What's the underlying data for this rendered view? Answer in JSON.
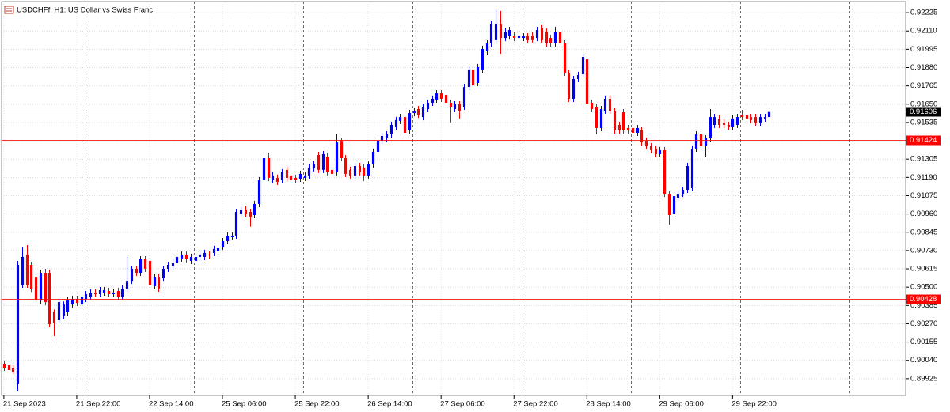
{
  "chart_data": {
    "type": "candlestick",
    "title": "USDCHFf, H1:  US Dollar vs Swiss Franc",
    "up_color": "#0000ff",
    "down_color": "#ff0000",
    "grid": true,
    "ylim": [
      0.8982,
      0.92295
    ],
    "yticks": [
      0.92225,
      {
        "value": 0.9211,
        "label": "0.92110"
      },
      0.91995,
      {
        "value": 0.9188,
        "label": "0.91880"
      },
      0.91765,
      {
        "value": 0.9165,
        "label": "0.91650"
      },
      0.91535,
      {
        "value": 0.9142,
        "label": "0.91420"
      },
      0.91305,
      {
        "value": 0.9119,
        "label": "0.91190"
      },
      0.91075,
      {
        "value": 0.9096,
        "label": "0.90960"
      },
      0.90845,
      {
        "value": 0.9073,
        "label": "0.90730"
      },
      0.90615,
      {
        "value": 0.905,
        "label": "0.90500"
      },
      0.90385,
      {
        "value": 0.9027,
        "label": "0.90270"
      },
      0.90155,
      {
        "value": 0.9004,
        "label": "0.90040"
      },
      0.89925
    ],
    "xlim": [
      -0.5,
      198
    ],
    "xticks": [
      {
        "value": 0,
        "label": "21 Sep 2023"
      },
      {
        "value": 16,
        "label": "21 Sep 22:00"
      },
      {
        "value": 32,
        "label": "22 Sep 14:00"
      },
      {
        "value": 48,
        "label": "25 Sep 06:00"
      },
      {
        "value": 64,
        "label": "25 Sep 22:00"
      },
      {
        "value": 80,
        "label": "26 Sep 14:00"
      },
      {
        "value": 96,
        "label": "27 Sep 06:00"
      },
      {
        "value": 112,
        "label": "27 Sep 22:00"
      },
      {
        "value": 128,
        "label": "28 Sep 14:00"
      },
      {
        "value": 144,
        "label": "29 Sep 06:00"
      },
      {
        "value": 160,
        "label": "29 Sep 22:00"
      }
    ],
    "day_starts": [
      18,
      42,
      66,
      90,
      114,
      138,
      162,
      186
    ],
    "price_lines": [
      {
        "value": 0.91606,
        "color": "#000000"
      },
      {
        "value": 0.91424,
        "color": "#ff0000"
      },
      {
        "value": 0.90428,
        "color": "#ff0000"
      }
    ],
    "ohlc": [
      [
        0.90019,
        0.90039,
        0.89974,
        0.89994
      ],
      [
        0.90009,
        0.90029,
        0.8996,
        0.89979
      ],
      [
        0.89994,
        0.9001,
        0.89955,
        0.89969
      ],
      [
        0.89895,
        0.90665,
        0.89845,
        0.9064
      ],
      [
        0.90516,
        0.90754,
        0.90496,
        0.9069
      ],
      [
        0.90705,
        0.90764,
        0.90496,
        0.90516
      ],
      [
        0.9064,
        0.9066,
        0.9047,
        0.90491
      ],
      [
        0.90565,
        0.9059,
        0.90396,
        0.90416
      ],
      [
        0.90416,
        0.9061,
        0.90396,
        0.9059
      ],
      [
        0.9059,
        0.90615,
        0.90386,
        0.90406
      ],
      [
        0.9059,
        0.9061,
        0.90247,
        0.90267
      ],
      [
        0.90342,
        0.9036,
        0.90193,
        0.90277
      ],
      [
        0.90292,
        0.90425,
        0.90272,
        0.90406
      ],
      [
        0.90317,
        0.9041,
        0.90297,
        0.90391
      ],
      [
        0.90342,
        0.90436,
        0.90322,
        0.90416
      ],
      [
        0.90391,
        0.90446,
        0.90371,
        0.90426
      ],
      [
        0.90426,
        0.90446,
        0.90381,
        0.90401
      ],
      [
        0.90391,
        0.90461,
        0.90371,
        0.90441
      ],
      [
        0.90426,
        0.90476,
        0.90406,
        0.90456
      ],
      [
        0.90441,
        0.90486,
        0.90421,
        0.90466
      ],
      [
        0.90466,
        0.90486,
        0.90436,
        0.90456
      ],
      [
        0.90456,
        0.90501,
        0.90436,
        0.90481
      ],
      [
        0.90466,
        0.90501,
        0.90446,
        0.90481
      ],
      [
        0.90476,
        0.90496,
        0.90436,
        0.90456
      ],
      [
        0.90456,
        0.90486,
        0.90436,
        0.90466
      ],
      [
        0.90476,
        0.90496,
        0.90421,
        0.90441
      ],
      [
        0.90441,
        0.90511,
        0.90421,
        0.90491
      ],
      [
        0.90491,
        0.9069,
        0.90471,
        0.9054
      ],
      [
        0.9054,
        0.90635,
        0.9052,
        0.90615
      ],
      [
        0.90615,
        0.90635,
        0.9057,
        0.9059
      ],
      [
        0.9059,
        0.90695,
        0.9057,
        0.90675
      ],
      [
        0.90675,
        0.90695,
        0.90595,
        0.90615
      ],
      [
        0.90665,
        0.90685,
        0.90496,
        0.90516
      ],
      [
        0.90506,
        0.90585,
        0.90486,
        0.90565
      ],
      [
        0.90565,
        0.90585,
        0.90471,
        0.90491
      ],
      [
        0.9056,
        0.90635,
        0.9054,
        0.90615
      ],
      [
        0.90615,
        0.9066,
        0.90595,
        0.9064
      ],
      [
        0.9063,
        0.90675,
        0.9061,
        0.90655
      ],
      [
        0.90655,
        0.9071,
        0.90635,
        0.9069
      ],
      [
        0.9068,
        0.90725,
        0.9066,
        0.90705
      ],
      [
        0.90705,
        0.90725,
        0.90655,
        0.90675
      ],
      [
        0.90665,
        0.9071,
        0.90645,
        0.9069
      ],
      [
        0.90665,
        0.90705,
        0.9065,
        0.9069
      ],
      [
        0.9069,
        0.90725,
        0.9067,
        0.90705
      ],
      [
        0.9069,
        0.90735,
        0.9067,
        0.90715
      ],
      [
        0.90705,
        0.90725,
        0.9068,
        0.907
      ],
      [
        0.90715,
        0.9076,
        0.90695,
        0.9074
      ],
      [
        0.90725,
        0.9077,
        0.90705,
        0.90749
      ],
      [
        0.90754,
        0.90809,
        0.90734,
        0.90789
      ],
      [
        0.90789,
        0.90844,
        0.90769,
        0.90824
      ],
      [
        0.90814,
        0.90844,
        0.90794,
        0.90824
      ],
      [
        0.90824,
        0.90993,
        0.90804,
        0.90973
      ],
      [
        0.90963,
        0.91008,
        0.90943,
        0.90988
      ],
      [
        0.90988,
        0.91008,
        0.90943,
        0.90963
      ],
      [
        0.90973,
        0.90993,
        0.9088,
        0.90938
      ],
      [
        0.90953,
        0.91043,
        0.90933,
        0.91023
      ],
      [
        0.91023,
        0.91192,
        0.91003,
        0.91172
      ],
      [
        0.91172,
        0.91331,
        0.91152,
        0.91311
      ],
      [
        0.91311,
        0.91346,
        0.91167,
        0.91187
      ],
      [
        0.91172,
        0.91222,
        0.91152,
        0.91202
      ],
      [
        0.91187,
        0.91207,
        0.91142,
        0.91162
      ],
      [
        0.91172,
        0.91242,
        0.91152,
        0.91222
      ],
      [
        0.91237,
        0.91257,
        0.91167,
        0.91187
      ],
      [
        0.91202,
        0.91222,
        0.91152,
        0.91172
      ],
      [
        0.91187,
        0.91207,
        0.91152,
        0.91172
      ],
      [
        0.91182,
        0.91232,
        0.91162,
        0.91212
      ],
      [
        0.91187,
        0.91222,
        0.91167,
        0.91202
      ],
      [
        0.91202,
        0.91272,
        0.91182,
        0.91252
      ],
      [
        0.91247,
        0.91291,
        0.91227,
        0.91271
      ],
      [
        0.91331,
        0.91351,
        0.91217,
        0.91237
      ],
      [
        0.91237,
        0.91356,
        0.91217,
        0.91336
      ],
      [
        0.91321,
        0.91341,
        0.91202,
        0.91222
      ],
      [
        0.91237,
        0.91257,
        0.91192,
        0.91212
      ],
      [
        0.91222,
        0.9146,
        0.91202,
        0.9141
      ],
      [
        0.9142,
        0.9144,
        0.91291,
        0.91311
      ],
      [
        0.91311,
        0.91331,
        0.91192,
        0.91212
      ],
      [
        0.91237,
        0.91257,
        0.91182,
        0.91202
      ],
      [
        0.91202,
        0.91281,
        0.91182,
        0.91261
      ],
      [
        0.91261,
        0.91281,
        0.91202,
        0.91222
      ],
      [
        0.91252,
        0.91272,
        0.91167,
        0.91202
      ],
      [
        0.91202,
        0.91291,
        0.91182,
        0.91271
      ],
      [
        0.91271,
        0.91371,
        0.91251,
        0.91351
      ],
      [
        0.91351,
        0.9144,
        0.91331,
        0.9142
      ],
      [
        0.9142,
        0.9147,
        0.914,
        0.9145
      ],
      [
        0.91435,
        0.9148,
        0.91415,
        0.9146
      ],
      [
        0.9146,
        0.9154,
        0.9144,
        0.9152
      ],
      [
        0.9151,
        0.9157,
        0.9149,
        0.9155
      ],
      [
        0.91545,
        0.91589,
        0.91525,
        0.91569
      ],
      [
        0.91569,
        0.91589,
        0.9145,
        0.9147
      ],
      [
        0.91485,
        0.91614,
        0.91465,
        0.91594
      ],
      [
        0.91594,
        0.91629,
        0.91574,
        0.91609
      ],
      [
        0.91619,
        0.91639,
        0.91564,
        0.91584
      ],
      [
        0.91569,
        0.91654,
        0.91549,
        0.91634
      ],
      [
        0.91619,
        0.91679,
        0.91599,
        0.91659
      ],
      [
        0.91659,
        0.91704,
        0.91639,
        0.91684
      ],
      [
        0.91679,
        0.91738,
        0.91659,
        0.91718
      ],
      [
        0.91718,
        0.91738,
        0.91664,
        0.91684
      ],
      [
        0.91708,
        0.91728,
        0.91639,
        0.91659
      ],
      [
        0.91659,
        0.91679,
        0.91535,
        0.91634
      ],
      [
        0.91619,
        0.91669,
        0.91599,
        0.91649
      ],
      [
        0.91649,
        0.91669,
        0.9156,
        0.91609
      ],
      [
        0.91634,
        0.91778,
        0.91614,
        0.91758
      ],
      [
        0.91758,
        0.91888,
        0.91738,
        0.91868
      ],
      [
        0.91868,
        0.91888,
        0.91748,
        0.91768
      ],
      [
        0.91783,
        0.91903,
        0.91763,
        0.91883
      ],
      [
        0.91868,
        0.92017,
        0.91848,
        0.91997
      ],
      [
        0.91982,
        0.92052,
        0.91962,
        0.92032
      ],
      [
        0.92032,
        0.92176,
        0.92012,
        0.92156
      ],
      [
        0.92057,
        0.92245,
        0.92037,
        0.92156
      ],
      [
        0.92156,
        0.92236,
        0.91967,
        0.92066
      ],
      [
        0.92066,
        0.92126,
        0.92046,
        0.92106
      ],
      [
        0.92081,
        0.92136,
        0.92061,
        0.92116
      ],
      [
        0.92081,
        0.92101,
        0.92046,
        0.92066
      ],
      [
        0.92066,
        0.92101,
        0.92046,
        0.92081
      ],
      [
        0.92066,
        0.92096,
        0.92046,
        0.92076
      ],
      [
        0.92076,
        0.92096,
        0.92037,
        0.92057
      ],
      [
        0.92081,
        0.92101,
        0.92037,
        0.92057
      ],
      [
        0.92066,
        0.92136,
        0.92046,
        0.92116
      ],
      [
        0.92131,
        0.92151,
        0.92037,
        0.92057
      ],
      [
        0.92106,
        0.92126,
        0.92012,
        0.92032
      ],
      [
        0.92066,
        0.92086,
        0.92012,
        0.92032
      ],
      [
        0.92032,
        0.92136,
        0.92012,
        0.92106
      ],
      [
        0.92106,
        0.92126,
        0.92012,
        0.92032
      ],
      [
        0.92032,
        0.92052,
        0.91828,
        0.91848
      ],
      [
        0.91848,
        0.91868,
        0.91664,
        0.91684
      ],
      [
        0.91684,
        0.91828,
        0.91664,
        0.91808
      ],
      [
        0.91808,
        0.91853,
        0.91788,
        0.91833
      ],
      [
        0.91843,
        0.91967,
        0.91823,
        0.91947
      ],
      [
        0.91932,
        0.91952,
        0.91629,
        0.91649
      ],
      [
        0.91659,
        0.91679,
        0.91599,
        0.91619
      ],
      [
        0.91634,
        0.91654,
        0.9146,
        0.915
      ],
      [
        0.915,
        0.91639,
        0.9148,
        0.91619
      ],
      [
        0.91609,
        0.91704,
        0.91589,
        0.91684
      ],
      [
        0.91684,
        0.91704,
        0.91589,
        0.91609
      ],
      [
        0.91609,
        0.91629,
        0.91465,
        0.91485
      ],
      [
        0.9152,
        0.9154,
        0.91465,
        0.91485
      ],
      [
        0.91599,
        0.91619,
        0.91465,
        0.91485
      ],
      [
        0.915,
        0.9152,
        0.91465,
        0.91485
      ],
      [
        0.915,
        0.9152,
        0.9145,
        0.9147
      ],
      [
        0.9147,
        0.9152,
        0.9145,
        0.915
      ],
      [
        0.91485,
        0.91505,
        0.9139,
        0.9141
      ],
      [
        0.9142,
        0.9144,
        0.91366,
        0.91386
      ],
      [
        0.91386,
        0.91406,
        0.91341,
        0.91361
      ],
      [
        0.91371,
        0.91391,
        0.91316,
        0.91336
      ],
      [
        0.91336,
        0.91381,
        0.91316,
        0.91361
      ],
      [
        0.91361,
        0.91381,
        0.91067,
        0.91087
      ],
      [
        0.91087,
        0.91107,
        0.90893,
        0.90953
      ],
      [
        0.90963,
        0.91092,
        0.90943,
        0.91072
      ],
      [
        0.91062,
        0.91107,
        0.91042,
        0.91087
      ],
      [
        0.91087,
        0.91132,
        0.91067,
        0.91112
      ],
      [
        0.91112,
        0.91281,
        0.91092,
        0.91261
      ],
      [
        0.91122,
        0.91391,
        0.91102,
        0.91371
      ],
      [
        0.91371,
        0.9148,
        0.91351,
        0.9146
      ],
      [
        0.9146,
        0.9148,
        0.91366,
        0.91386
      ],
      [
        0.91386,
        0.91455,
        0.91316,
        0.91435
      ],
      [
        0.91435,
        0.91619,
        0.91415,
        0.91569
      ],
      [
        0.9152,
        0.91589,
        0.915,
        0.91569
      ],
      [
        0.9156,
        0.9158,
        0.915,
        0.9152
      ],
      [
        0.91535,
        0.91555,
        0.915,
        0.9152
      ],
      [
        0.9152,
        0.9154,
        0.9149,
        0.9151
      ],
      [
        0.9151,
        0.9158,
        0.9149,
        0.9156
      ],
      [
        0.9152,
        0.91589,
        0.915,
        0.91569
      ],
      [
        0.91584,
        0.91614,
        0.91549,
        0.91569
      ],
      [
        0.91584,
        0.91604,
        0.9154,
        0.9156
      ],
      [
        0.91569,
        0.91589,
        0.9153,
        0.9155
      ],
      [
        0.91569,
        0.91589,
        0.91515,
        0.91535
      ],
      [
        0.91535,
        0.91589,
        0.91515,
        0.91569
      ],
      [
        0.9156,
        0.91589,
        0.9154,
        0.91569
      ],
      [
        0.91569,
        0.91626,
        0.91549,
        0.91606
      ]
    ]
  }
}
